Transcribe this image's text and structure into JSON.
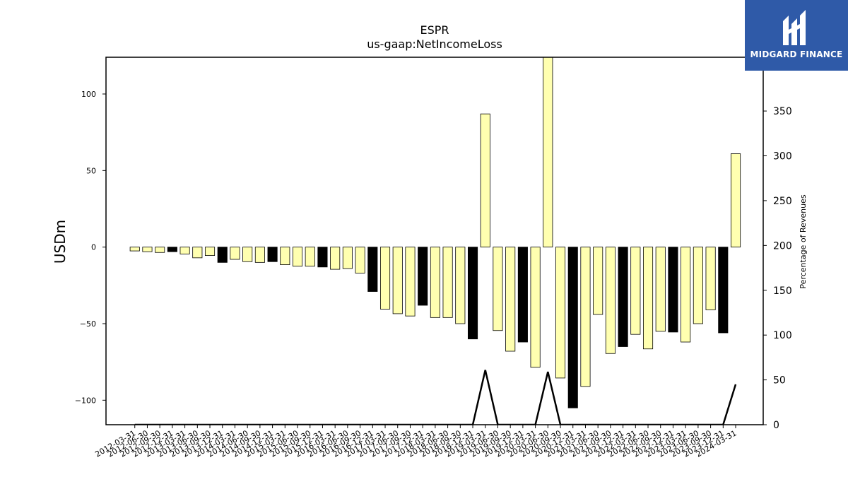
{
  "chart_data": {
    "type": "bar",
    "title": "ESPR",
    "subtitle": "us-gaap:NetIncomeLoss",
    "ylabel": "USDm",
    "ylabel_right": "Percentage of Revenues",
    "ylim": [
      -116,
      124
    ],
    "ylim_right": [
      0,
      410
    ],
    "yticks": [
      -100,
      -50,
      0,
      50,
      100
    ],
    "yticks_right": [
      0,
      50,
      100,
      150,
      200,
      250,
      300,
      350
    ],
    "bar_fill_colors": {
      "quarter": "#ffffb0",
      "year_end": "#000000"
    },
    "line_color": "#000000",
    "categories": [
      "2012-03-31",
      "2012-06-30",
      "2012-09-30",
      "2012-12-31",
      "2013-03-31",
      "2013-06-30",
      "2013-09-30",
      "2013-12-31",
      "2014-03-31",
      "2014-06-30",
      "2014-09-30",
      "2014-12-31",
      "2015-03-31",
      "2015-06-30",
      "2015-09-30",
      "2015-12-31",
      "2016-03-31",
      "2016-06-30",
      "2016-09-30",
      "2016-12-31",
      "2017-03-31",
      "2017-06-30",
      "2017-09-30",
      "2017-12-31",
      "2018-03-31",
      "2018-06-30",
      "2018-09-30",
      "2018-12-31",
      "2019-03-31",
      "2019-06-30",
      "2019-09-30",
      "2019-12-31",
      "2020-03-31",
      "2020-06-30",
      "2020-09-30",
      "2020-12-31",
      "2021-03-31",
      "2021-06-30",
      "2021-09-30",
      "2021-12-31",
      "2022-03-31",
      "2022-06-30",
      "2022-09-30",
      "2022-12-31",
      "2023-03-31",
      "2023-06-30",
      "2023-09-30",
      "2023-12-31",
      "2024-03-31"
    ],
    "series": [
      {
        "values": [
          -2.5,
          -3,
          -3.5,
          -3,
          -4.5,
          -7,
          -5.5,
          -10,
          -8,
          -9.5,
          -10,
          -9.5,
          -11.5,
          -12.5,
          -12.5,
          -13,
          -14.5,
          -14,
          -17,
          -29,
          -40.5,
          -43.5,
          -45,
          -38,
          -46,
          -46,
          -50,
          -60,
          87,
          -54.5,
          -68,
          -62,
          -78.5,
          125,
          -85.5,
          -105,
          -91,
          -44,
          -69.5,
          -65,
          -57,
          -66.5,
          -55,
          -55.5,
          -62,
          -50,
          -41,
          -56,
          61
        ],
        "year_end": [
          false,
          false,
          false,
          true,
          false,
          false,
          false,
          true,
          false,
          false,
          false,
          true,
          false,
          false,
          false,
          true,
          false,
          false,
          false,
          true,
          false,
          false,
          false,
          true,
          false,
          false,
          false,
          true,
          false,
          false,
          false,
          true,
          false,
          false,
          false,
          true,
          false,
          false,
          false,
          true,
          false,
          false,
          false,
          true,
          false,
          false,
          false,
          true,
          false
        ]
      },
      {
        "axis": "right",
        "type": "line",
        "values": [
          0,
          0,
          0,
          0,
          0,
          0,
          0,
          0,
          0,
          0,
          0,
          0,
          0,
          0,
          0,
          0,
          0,
          0,
          0,
          0,
          0,
          0,
          0,
          0,
          0,
          0,
          0,
          0,
          61,
          0,
          0,
          0,
          0,
          59,
          0,
          0,
          0,
          0,
          0,
          0,
          0,
          0,
          0,
          0,
          0,
          0,
          0,
          0,
          45
        ]
      }
    ]
  },
  "logo": {
    "text": "MIDGARD FINANCE"
  }
}
